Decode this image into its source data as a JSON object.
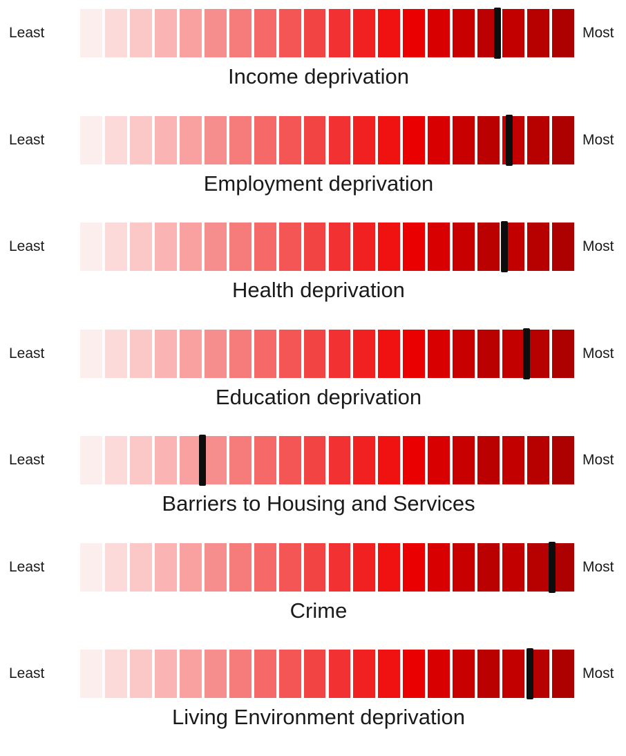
{
  "chart_data": {
    "type": "bar",
    "scale": {
      "segments": 20,
      "min_label": "Least",
      "max_label": "Most"
    },
    "palette": [
      "#fdeeee",
      "#fcdada",
      "#fbc7c7",
      "#fab4b4",
      "#f9a1a1",
      "#f78e8e",
      "#f67b7b",
      "#f56969",
      "#f45656",
      "#f34444",
      "#f23232",
      "#f12121",
      "#f01111",
      "#ea0000",
      "#d80000",
      "#c80000",
      "#bb0000",
      "#c20000",
      "#b70000",
      "#ad0000"
    ],
    "series": [
      {
        "name": "Income deprivation",
        "value": 0.845
      },
      {
        "name": "Employment deprivation",
        "value": 0.868
      },
      {
        "name": "Health deprivation",
        "value": 0.859
      },
      {
        "name": "Education deprivation",
        "value": 0.903
      },
      {
        "name": "Barriers to Housing and Services",
        "value": 0.248
      },
      {
        "name": "Crime",
        "value": 0.955
      },
      {
        "name": "Living Environment deprivation",
        "value": 0.911
      }
    ]
  }
}
